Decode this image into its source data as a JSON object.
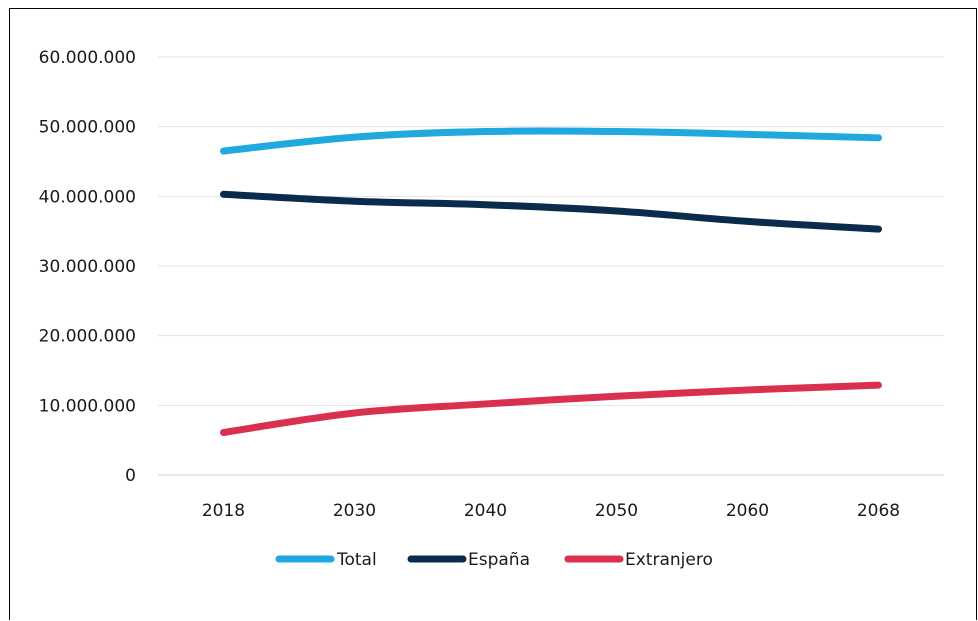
{
  "chart_data": {
    "type": "line",
    "title": "",
    "xlabel": "",
    "ylabel": "",
    "categories": [
      "2018",
      "2030",
      "2040",
      "2050",
      "2060",
      "2068"
    ],
    "ylim": [
      0,
      60000000
    ],
    "yticks": [
      0,
      10000000,
      20000000,
      30000000,
      40000000,
      50000000,
      60000000
    ],
    "ytick_labels": [
      "0",
      "10.000.000",
      "20.000.000",
      "30.000.000",
      "40.000.000",
      "50.000.000",
      "60.000.000"
    ],
    "grid": true,
    "legend_position": "bottom",
    "series": [
      {
        "name": "Total",
        "color": "#1fa9df",
        "values": [
          46500000,
          48500000,
          49300000,
          49300000,
          48900000,
          48400000
        ]
      },
      {
        "name": "España",
        "color": "#0b2b4c",
        "values": [
          40300000,
          39300000,
          38800000,
          37900000,
          36400000,
          35300000
        ]
      },
      {
        "name": "Extranjero",
        "color": "#d9304f",
        "values": [
          6100000,
          8900000,
          10200000,
          11300000,
          12200000,
          12900000
        ]
      }
    ]
  }
}
